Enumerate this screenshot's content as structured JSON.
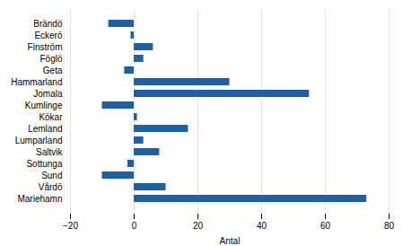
{
  "chart_data": {
    "type": "bar",
    "orientation": "horizontal",
    "categories": [
      "Brändö",
      "Eckerö",
      "Finström",
      "Föglö",
      "Geta",
      "Hammarland",
      "Jomala",
      "Kumlinge",
      "Kökar",
      "Lemland",
      "Lumparland",
      "Saltvik",
      "Sottunga",
      "Sund",
      "Vårdö",
      "Mariehamn"
    ],
    "values": [
      -8,
      -1,
      6,
      3,
      -3,
      30,
      55,
      -10,
      1,
      17,
      3,
      8,
      -2,
      -10,
      10,
      73
    ],
    "color": "#1F5FA6",
    "xlabel": "Antal",
    "xlim": [
      -20,
      80
    ],
    "xticks": [
      -20,
      0,
      20,
      40,
      60,
      80
    ],
    "grid": true
  }
}
